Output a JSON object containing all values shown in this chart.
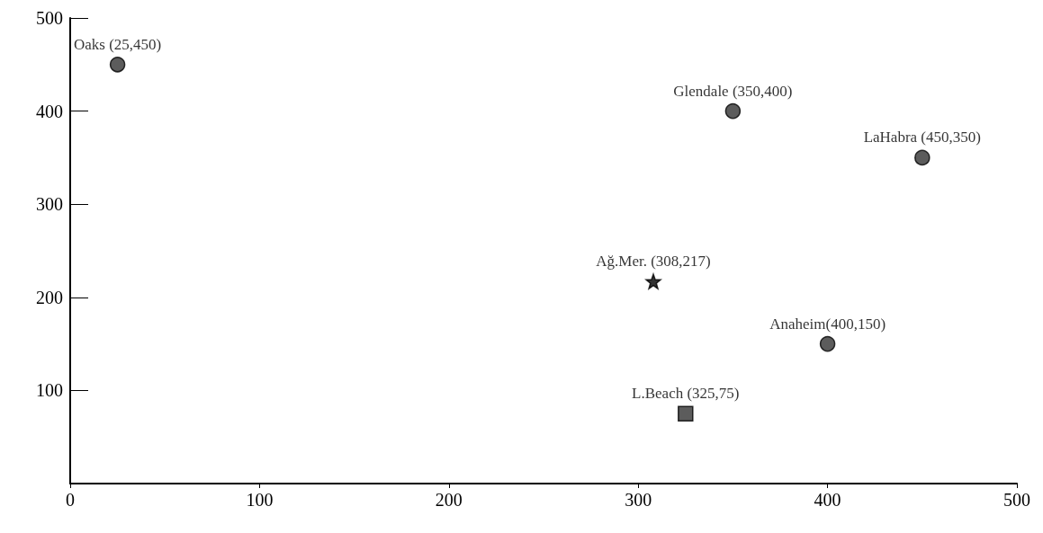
{
  "chart_data": {
    "type": "scatter",
    "series": [
      {
        "color": "#333333",
        "marker": "circle",
        "x": [
          25,
          350,
          450,
          400
        ],
        "values": [
          450,
          400,
          350,
          150
        ]
      },
      {
        "color": "#333333",
        "marker": "square",
        "x": [
          325
        ],
        "values": [
          75
        ]
      },
      {
        "color": "#000000",
        "marker": "star",
        "x": [
          308
        ],
        "values": [
          217
        ]
      }
    ],
    "annotations": [
      {
        "text": "Oaks (25,450)",
        "x": 25,
        "y": 450
      },
      {
        "text": "Glendale (350,400)",
        "x": 350,
        "y": 400
      },
      {
        "text": "LaHabra (450,350)",
        "x": 450,
        "y": 350
      },
      {
        "text": "Anaheim(400,150)",
        "x": 400,
        "y": 150
      },
      {
        "text": "L.Beach (325,75)",
        "x": 325,
        "y": 75
      },
      {
        "text": "Ağ.Mer. (308,217)",
        "x": 308,
        "y": 217
      }
    ],
    "xlim": [
      0,
      500
    ],
    "xticks": [
      0,
      100,
      200,
      300,
      400,
      500
    ],
    "ylim": [
      0,
      500
    ],
    "yticks": [
      100,
      200,
      300,
      400,
      500
    ],
    "grid": false
  }
}
